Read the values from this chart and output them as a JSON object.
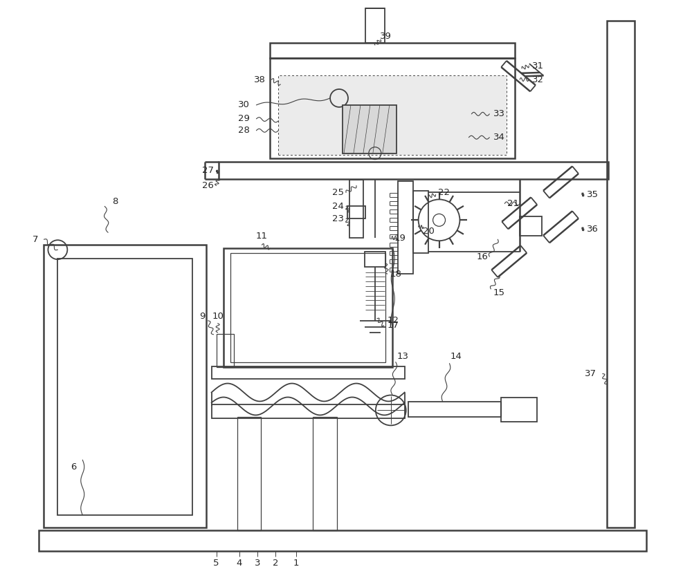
{
  "bg_color": "#ffffff",
  "line_color": "#404040",
  "label_color": "#252525",
  "label_fontsize": 9.5,
  "fig_width": 10.0,
  "fig_height": 8.36
}
